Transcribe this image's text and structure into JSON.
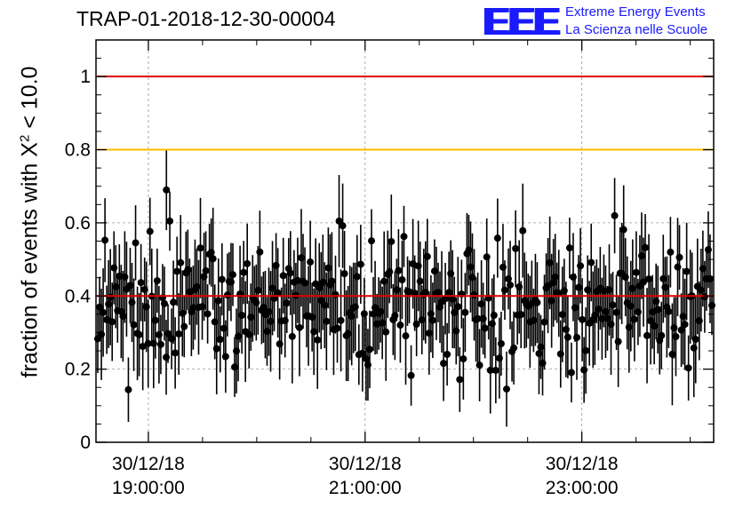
{
  "header": {
    "title": "TRAP-01-2018-12-30-00004"
  },
  "logo": {
    "mark": "EEE",
    "line1": "Extreme Energy Events",
    "line2": "La Scienza nelle Scuole"
  },
  "colors": {
    "upper_line": "#e00000",
    "warning_line": "#ffbb00",
    "mean_line": "#e00000",
    "points": "#000000",
    "grid": "#999999",
    "logo": "#1a1aff"
  },
  "chart_data": {
    "type": "scatter",
    "title": "TRAP-01-2018-12-30-00004",
    "ylabel": {
      "prefix": "fraction of events with ",
      "symbol": "X",
      "exponent": "2",
      "suffix": " < 10.0"
    },
    "xlabel": "",
    "ylim": [
      0,
      1.1
    ],
    "yticks": [
      0,
      0.2,
      0.4,
      0.6,
      0.8,
      1
    ],
    "ytick_labels": [
      "0",
      "0.2",
      "0.4",
      "0.6",
      "0.8",
      "1"
    ],
    "x_start": "30/12/18 18:31",
    "x_end": "30/12/18 24:13",
    "xticks": [
      {
        "date": "30/12/18",
        "time": "19:00:00"
      },
      {
        "date": "30/12/18",
        "time": "21:00:00"
      },
      {
        "date": "30/12/18",
        "time": "23:00:00"
      }
    ],
    "grid": true,
    "reference_lines": [
      {
        "y": 1.0,
        "color": "#e00000"
      },
      {
        "y": 0.8,
        "color": "#ffbb00"
      },
      {
        "y": 0.4,
        "color": "#e00000"
      }
    ],
    "series": [
      {
        "n_points": 342,
        "y_mean": 0.38,
        "y_range": [
          0.1,
          0.69
        ],
        "error_range": [
          0.08,
          0.14
        ]
      }
    ]
  }
}
